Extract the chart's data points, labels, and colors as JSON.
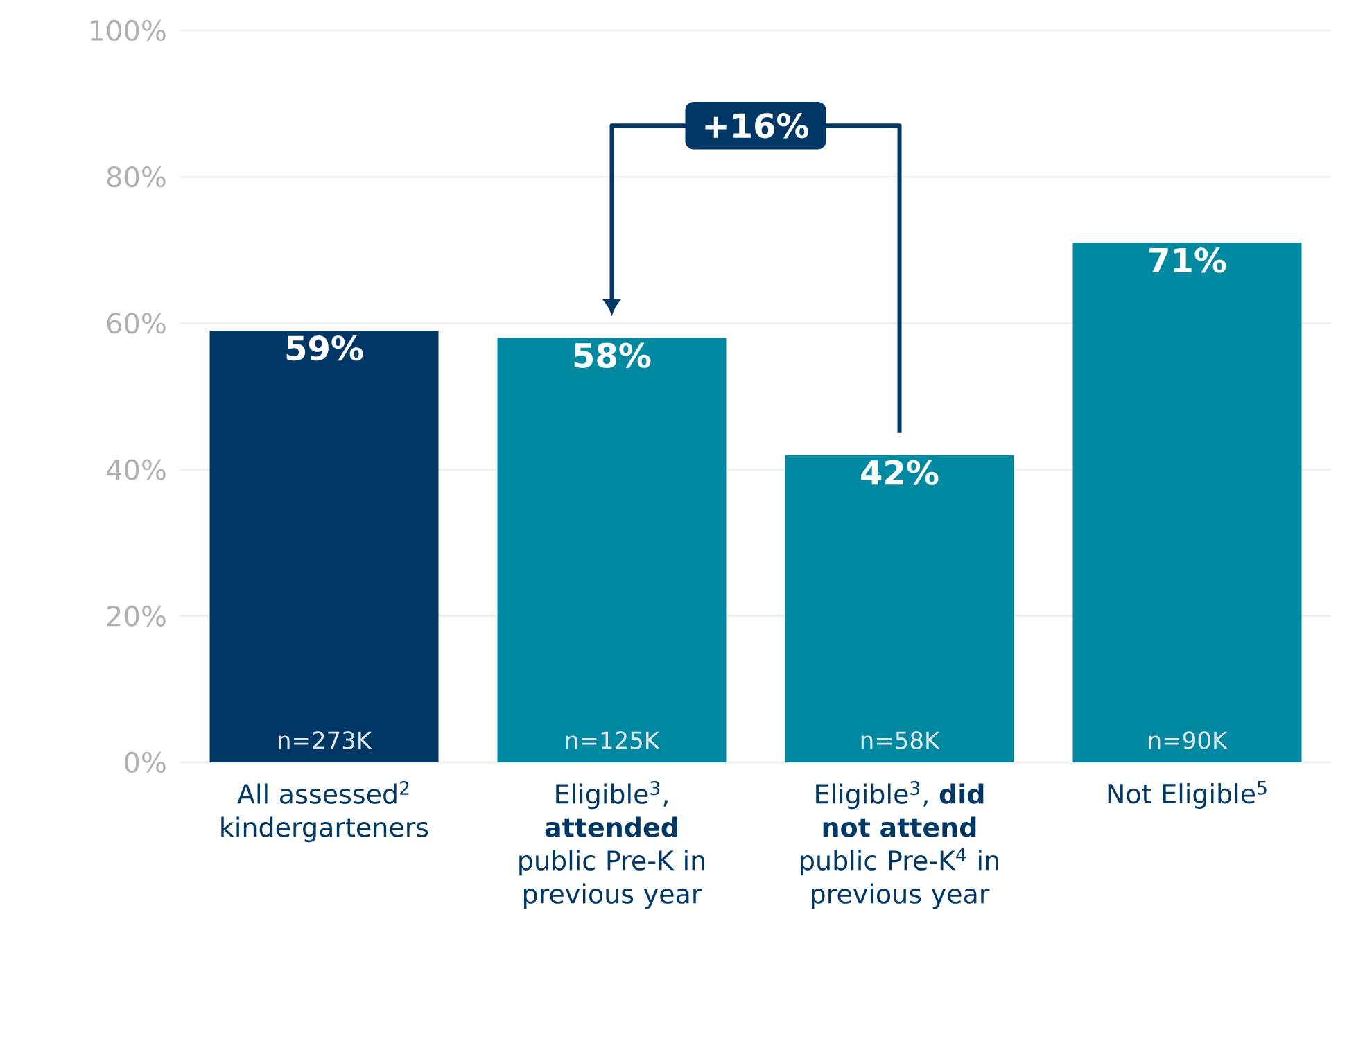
{
  "chart_data": {
    "type": "bar",
    "categories": [
      "All assessed$^{2}$ kindergarteners",
      "Eligible$^{3}$, **attended** public Pre-K in previous year",
      "Eligible$^{3}$, **did not attend** public Pre-K$^{4}$ in previous year",
      "Not Eligible$^{5}$"
    ],
    "values": [
      59,
      58,
      42,
      71
    ],
    "colors": [
      "#003764",
      "#0089a1",
      "#0089a1",
      "#0089a1"
    ],
    "value_labels": [
      "59%",
      "58%",
      "42%",
      "71%"
    ],
    "ylim": [
      0,
      100
    ],
    "yticks": [
      {
        "value": 0,
        "label": "0%"
      },
      {
        "value": 20,
        "label": "20%"
      },
      {
        "value": 40,
        "label": "40%"
      },
      {
        "value": 60,
        "label": "60%"
      },
      {
        "value": 80,
        "label": "80%"
      },
      {
        "value": 100,
        "label": "100%"
      }
    ],
    "grid": "y",
    "annotations": [
      "n=273K",
      "n=125K",
      "n=58K",
      "n=90K",
      "+16%"
    ]
  }
}
